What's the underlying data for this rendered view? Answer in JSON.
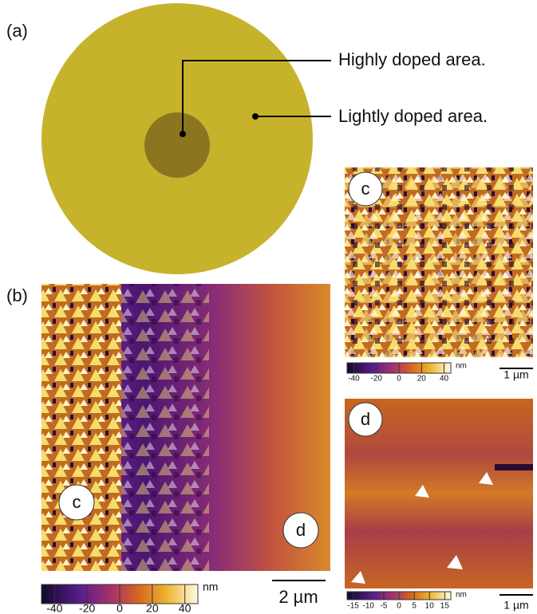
{
  "figure": {
    "panel_a": {
      "label": "(a)",
      "annotations": [
        "Highly doped area.",
        "Lightly doped area."
      ]
    },
    "panel_b": {
      "label": "(b)",
      "markers": [
        "c",
        "d"
      ],
      "scale_bar": "2 µm",
      "colorbar": {
        "unit": "nm",
        "range": [
          -48,
          48
        ],
        "ticks": [
          -40,
          -20,
          0,
          20,
          40
        ]
      }
    },
    "panel_c": {
      "label": "c",
      "scale_bar": "1 µm",
      "colorbar": {
        "unit": "nm",
        "range": [
          -46,
          46
        ],
        "ticks": [
          -40,
          -20,
          0,
          20,
          40
        ]
      }
    },
    "panel_d": {
      "label": "d",
      "scale_bar": "1 µm",
      "colorbar": {
        "unit": "nm",
        "range": [
          -17,
          17
        ],
        "ticks": [
          -15,
          -10,
          -5,
          0,
          5,
          10,
          15
        ]
      }
    }
  }
}
